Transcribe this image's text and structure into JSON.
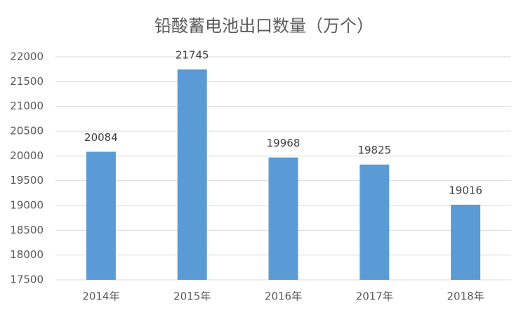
{
  "chart_data": {
    "type": "bar",
    "title": "铅酸蓄电池出口数量（万个）",
    "categories": [
      "2014年",
      "2015年",
      "2016年",
      "2017年",
      "2018年"
    ],
    "values": [
      20084,
      21745,
      19968,
      19825,
      19016
    ],
    "color": "#5b9bd5",
    "ylim": [
      17500,
      22000
    ],
    "yticks": [
      17500,
      18000,
      18500,
      19000,
      19500,
      20000,
      20500,
      21000,
      21500,
      22000
    ],
    "grid": true
  }
}
